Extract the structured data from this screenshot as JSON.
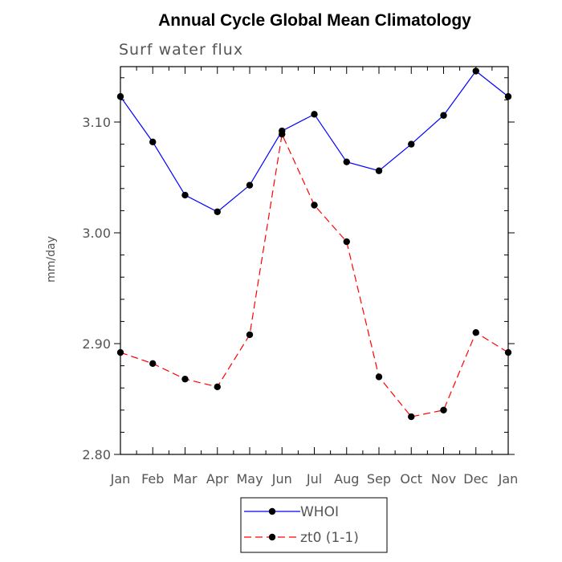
{
  "chart_data": {
    "type": "line",
    "title": "Annual Cycle Global Mean Climatology",
    "subtitle": "Surf water flux",
    "xlabel": "",
    "ylabel": "mm/day",
    "categories": [
      "Jan",
      "Feb",
      "Mar",
      "Apr",
      "May",
      "Jun",
      "Jul",
      "Aug",
      "Sep",
      "Oct",
      "Nov",
      "Dec",
      "Jan"
    ],
    "ylim": [
      2.8,
      3.15
    ],
    "yticks": [
      2.8,
      2.9,
      3.0,
      3.1
    ],
    "ytick_labels": [
      "2.80",
      "2.90",
      "3.00",
      "3.10"
    ],
    "grid": false,
    "legend_position": "bottom-center",
    "series": [
      {
        "name": "WHOI",
        "color": "#0000ff",
        "dash": "solid",
        "marker": "circle",
        "values": [
          3.123,
          3.082,
          3.034,
          3.019,
          3.043,
          3.092,
          3.107,
          3.064,
          3.056,
          3.08,
          3.106,
          3.146,
          3.123
        ]
      },
      {
        "name": "zt0 (1-1)",
        "color": "#ff0000",
        "dash": "dashed",
        "marker": "circle",
        "values": [
          2.892,
          2.882,
          2.868,
          2.861,
          2.908,
          3.089,
          3.025,
          2.992,
          2.87,
          2.834,
          2.84,
          2.91,
          2.892
        ]
      }
    ]
  }
}
